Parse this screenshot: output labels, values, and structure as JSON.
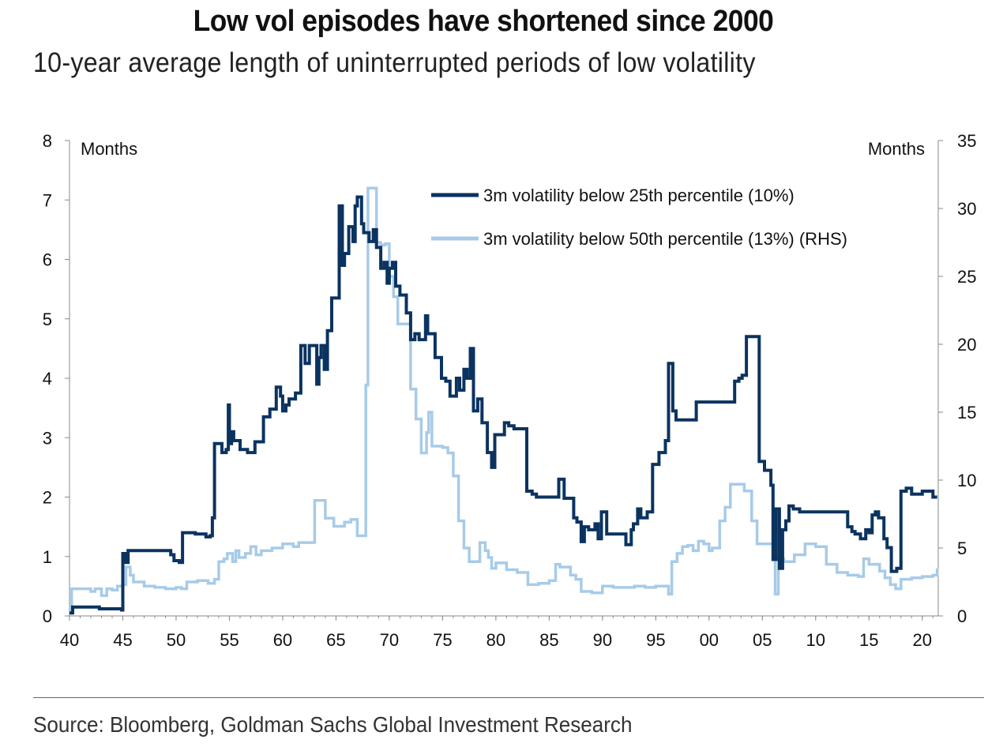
{
  "title": "Low vol episodes have shortened since 2000",
  "subtitle": "10-year average length of uninterrupted periods of low volatility",
  "source": "Source: Bloomberg, Goldman Sachs Global Investment Research",
  "chart_data": {
    "type": "line",
    "xlim": [
      1940,
      2021.5
    ],
    "x_tick_labels": [
      "40",
      "45",
      "50",
      "55",
      "60",
      "65",
      "70",
      "75",
      "80",
      "85",
      "90",
      "95",
      "00",
      "05",
      "10",
      "15",
      "20"
    ],
    "x_tick_values": [
      1940,
      1945,
      1950,
      1955,
      1960,
      1965,
      1970,
      1975,
      1980,
      1985,
      1990,
      1995,
      2000,
      2005,
      2010,
      2015,
      2020
    ],
    "left_axis": {
      "label": "Months",
      "ylim": [
        0,
        8
      ],
      "ticks": [
        0,
        1,
        2,
        3,
        4,
        5,
        6,
        7,
        8
      ]
    },
    "right_axis": {
      "label": "Months",
      "ylim": [
        0,
        35
      ],
      "ticks": [
        0,
        5,
        10,
        15,
        20,
        25,
        30,
        35
      ]
    },
    "grid": false,
    "legend_position": "top-right",
    "series": [
      {
        "name": "3m volatility below 25th percentile (10%)",
        "axis": "left",
        "color": "#0b3360",
        "step": true,
        "x": [
          1940,
          1940.3,
          1942.8,
          1944.9,
          1945.0,
          1945.2,
          1945.5,
          1949.5,
          1949.8,
          1950.3,
          1950.6,
          1951.8,
          1952.8,
          1953.2,
          1953.4,
          1953.6,
          1954.3,
          1954.7,
          1954.9,
          1955.0,
          1955.2,
          1955.4,
          1956.0,
          1956.7,
          1957.4,
          1958.0,
          1958.2,
          1958.8,
          1959.4,
          1959.8,
          1960.0,
          1960.3,
          1960.6,
          1961.2,
          1961.7,
          1962.1,
          1962.5,
          1963.2,
          1963.4,
          1963.6,
          1963.9,
          1964.2,
          1964.6,
          1964.8,
          1965.3,
          1965.6,
          1965.8,
          1966.2,
          1966.6,
          1966.8,
          1967.0,
          1967.4,
          1967.6,
          1968.1,
          1968.5,
          1968.8,
          1969.2,
          1969.5,
          1969.8,
          1970.0,
          1970.3,
          1970.6,
          1971.0,
          1971.6,
          1972.0,
          1972.4,
          1972.8,
          1973.4,
          1973.6,
          1974.3,
          1974.9,
          1975.3,
          1975.7,
          1976.3,
          1976.6,
          1977.0,
          1977.3,
          1977.6,
          1977.9,
          1978.3,
          1978.7,
          1979.2,
          1979.6,
          1979.9,
          1980.4,
          1980.8,
          1981.2,
          1981.7,
          1982.9,
          1983.4,
          1983.8,
          1985.6,
          1985.9,
          1986.4,
          1987.3,
          1987.6,
          1988.0,
          1988.3,
          1988.7,
          1989.3,
          1989.6,
          1989.9,
          1990.4,
          1991.5,
          1992.2,
          1992.7,
          1992.9,
          1993.3,
          1993.6,
          1994.2,
          1994.7,
          1995.3,
          1995.9,
          1996.2,
          1996.6,
          1996.9,
          1998.8,
          2001.1,
          2002.4,
          2002.8,
          2003.1,
          2003.5,
          2004.2,
          2004.7,
          2005.2,
          2005.8,
          2006.0,
          2006.3,
          2006.6,
          2006.9,
          2007.2,
          2007.5,
          2007.9,
          2008.5,
          2012.5,
          2013.0,
          2013.4,
          2013.7,
          2014.2,
          2014.7,
          2015.0,
          2015.3,
          2015.6,
          2015.9,
          2016.4,
          2016.7,
          2017.1,
          2017.6,
          2018.0,
          2018.5,
          2019.0,
          2020.0,
          2021.0,
          2021.4
        ],
        "y": [
          0.05,
          0.15,
          0.12,
          0.1,
          1.05,
          0.9,
          1.1,
          1.03,
          0.93,
          0.9,
          1.4,
          1.38,
          1.33,
          1.35,
          1.65,
          2.9,
          2.75,
          2.8,
          3.55,
          2.9,
          3.1,
          2.95,
          2.8,
          2.75,
          2.93,
          2.93,
          3.35,
          3.48,
          3.85,
          3.7,
          3.45,
          3.55,
          3.65,
          3.75,
          4.55,
          4.25,
          4.55,
          3.9,
          4.35,
          4.55,
          4.15,
          4.8,
          5.35,
          5.35,
          6.9,
          5.9,
          6.1,
          6.55,
          6.3,
          6.9,
          7.05,
          6.6,
          6.45,
          6.3,
          6.5,
          6.2,
          5.85,
          5.95,
          5.6,
          5.85,
          5.95,
          5.55,
          5.4,
          5.1,
          4.65,
          4.75,
          4.65,
          5.05,
          4.75,
          4.35,
          4.0,
          3.95,
          3.7,
          4.0,
          3.8,
          4.15,
          4.0,
          4.5,
          3.45,
          3.65,
          3.25,
          2.75,
          2.5,
          3.05,
          3.05,
          3.25,
          3.2,
          3.15,
          2.1,
          2.05,
          2.0,
          2.0,
          2.3,
          1.98,
          1.65,
          1.58,
          1.25,
          1.5,
          1.45,
          1.55,
          1.3,
          1.75,
          1.38,
          1.38,
          1.2,
          1.45,
          1.55,
          1.8,
          1.65,
          1.75,
          2.55,
          2.75,
          2.95,
          4.25,
          3.45,
          3.3,
          3.6,
          3.6,
          3.95,
          4.0,
          4.05,
          4.7,
          4.7,
          2.6,
          2.45,
          2.2,
          0.95,
          1.8,
          0.8,
          1.45,
          1.6,
          1.85,
          1.8,
          1.75,
          1.75,
          1.5,
          1.42,
          1.38,
          1.3,
          1.45,
          1.4,
          1.7,
          1.75,
          1.65,
          1.3,
          1.15,
          0.75,
          0.8,
          2.1,
          2.15,
          2.05,
          2.1,
          2.0,
          2.0
        ]
      },
      {
        "name": "3m volatility below 50th percentile (13%) (RHS)",
        "axis": "right",
        "color": "#a7cbe8",
        "step": true,
        "x": [
          1940,
          1940.2,
          1942.0,
          1942.4,
          1943.0,
          1943.5,
          1944.0,
          1944.5,
          1945.0,
          1945.3,
          1945.7,
          1946.0,
          1947.0,
          1948.0,
          1949.0,
          1950.0,
          1950.5,
          1951.0,
          1952.0,
          1953.0,
          1953.6,
          1954.0,
          1954.5,
          1954.8,
          1955.3,
          1955.6,
          1955.9,
          1956.5,
          1957.0,
          1957.5,
          1958.0,
          1959.0,
          1960.0,
          1961.0,
          1961.5,
          1962.5,
          1963.0,
          1964.0,
          1964.8,
          1965.8,
          1966.4,
          1967.0,
          1967.8,
          1968.0,
          1968.8,
          1969.2,
          1969.6,
          1970.0,
          1970.4,
          1970.8,
          1972.0,
          1972.5,
          1973.0,
          1973.5,
          1973.7,
          1974.0,
          1975.0,
          1975.5,
          1976.0,
          1976.5,
          1977.0,
          1977.5,
          1978.0,
          1978.5,
          1979.0,
          1979.3,
          1979.6,
          1980.0,
          1981.0,
          1982.0,
          1983.0,
          1984.0,
          1985.0,
          1985.6,
          1986.0,
          1987.0,
          1987.5,
          1988.0,
          1989.0,
          1990.0,
          1991.0,
          1992.0,
          1993.0,
          1994.0,
          1995.0,
          1996.0,
          1996.2,
          1996.5,
          1997.0,
          1997.5,
          1998.0,
          1998.5,
          1999.0,
          1999.5,
          2000.0,
          2000.3,
          2001.0,
          2001.5,
          2002.0,
          2003.0,
          2003.3,
          2004.0,
          2004.5,
          2005.0,
          2006.0,
          2006.2,
          2006.5,
          2007.0,
          2008.0,
          2009.0,
          2010.0,
          2011.0,
          2012.0,
          2013.0,
          2014.0,
          2014.5,
          2015.0,
          2016.0,
          2016.5,
          2017.0,
          2017.5,
          2018.0,
          2019.0,
          2020.0,
          2021.0,
          2021.4
        ],
        "y": [
          0.2,
          2.0,
          1.8,
          2.0,
          1.5,
          2.0,
          1.9,
          2.2,
          2.3,
          3.6,
          3.0,
          2.5,
          2.2,
          2.1,
          2.0,
          2.1,
          2.0,
          2.5,
          2.6,
          2.4,
          2.7,
          4.0,
          4.2,
          4.6,
          4.0,
          4.8,
          4.3,
          4.6,
          5.1,
          4.5,
          4.8,
          5.0,
          5.3,
          5.1,
          5.4,
          5.4,
          8.5,
          7.2,
          6.6,
          6.9,
          7.1,
          5.9,
          17.0,
          31.5,
          27.5,
          27.3,
          27.4,
          25.0,
          23.5,
          21.5,
          16.7,
          14.5,
          12.0,
          13.5,
          15.0,
          12.5,
          12.4,
          12.0,
          10.3,
          7.0,
          5.0,
          4.0,
          4.0,
          5.4,
          4.8,
          4.3,
          3.5,
          3.9,
          3.4,
          3.2,
          2.3,
          2.4,
          2.6,
          3.8,
          3.6,
          3.0,
          2.7,
          1.8,
          1.7,
          2.2,
          2.1,
          2.1,
          2.2,
          2.1,
          2.2,
          2.2,
          1.6,
          4.0,
          4.6,
          5.1,
          5.2,
          4.8,
          5.5,
          5.3,
          4.8,
          5.0,
          7.0,
          8.0,
          9.7,
          9.7,
          9.2,
          7.0,
          5.3,
          5.3,
          5.3,
          1.6,
          4.2,
          4.0,
          4.5,
          5.3,
          5.1,
          3.8,
          3.2,
          3.0,
          2.9,
          4.2,
          3.8,
          3.3,
          2.8,
          2.3,
          2.0,
          2.7,
          2.8,
          2.9,
          3.0,
          3.5
        ]
      }
    ]
  }
}
